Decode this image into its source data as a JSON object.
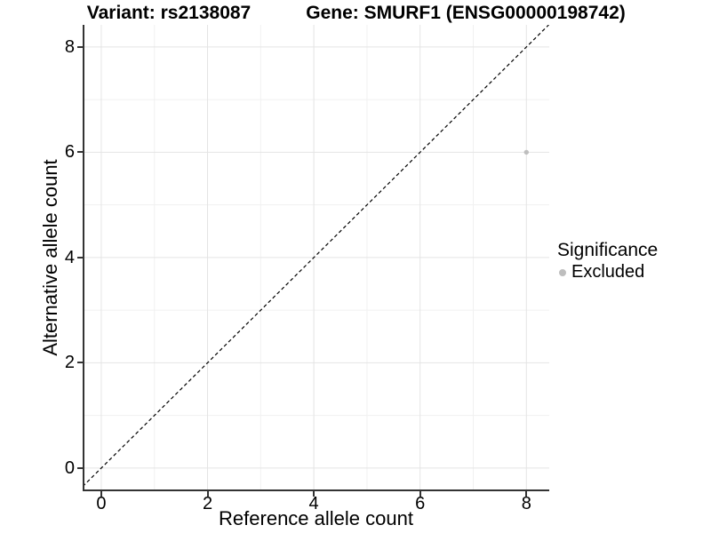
{
  "chart_data": {
    "type": "scatter",
    "titles": {
      "left": "Variant: rs2138087",
      "right": "Gene: SMURF1 (ENSG00000198742)"
    },
    "xlabel": "Reference allele count",
    "ylabel": "Alternative allele count",
    "xlim": [
      -0.35,
      8.43
    ],
    "ylim": [
      -0.44,
      8.42
    ],
    "x_ticks": {
      "values": [
        0,
        2,
        4,
        6,
        8
      ],
      "labels": [
        "0",
        "2",
        "4",
        "6",
        "8"
      ]
    },
    "y_ticks": {
      "values": [
        0,
        2,
        4,
        6,
        8
      ],
      "labels": [
        "0",
        "2",
        "4",
        "6",
        "8"
      ]
    },
    "minor_grid_x": [
      1,
      3,
      5,
      7
    ],
    "minor_grid_y": [
      1,
      3,
      5,
      7
    ],
    "grid": "major+minor",
    "identity_line": {
      "equation": "y = x",
      "style": "dashed",
      "color": "#000000"
    },
    "series": [
      {
        "name": "Excluded",
        "color": "#bebebe",
        "points": [
          {
            "x": 8,
            "y": 6
          }
        ]
      }
    ],
    "legend": {
      "title": "Significance",
      "position": "right",
      "entries": [
        {
          "label": "Excluded",
          "color": "#bebebe"
        }
      ]
    },
    "style": {
      "background": "#ffffff",
      "grid_major_color": "#e4e4e4",
      "grid_minor_color": "#f1f1f1",
      "axis_color": "#333333",
      "text_color": "#000000",
      "point_radius": 2.7,
      "legend_dot_radius": 4
    }
  }
}
